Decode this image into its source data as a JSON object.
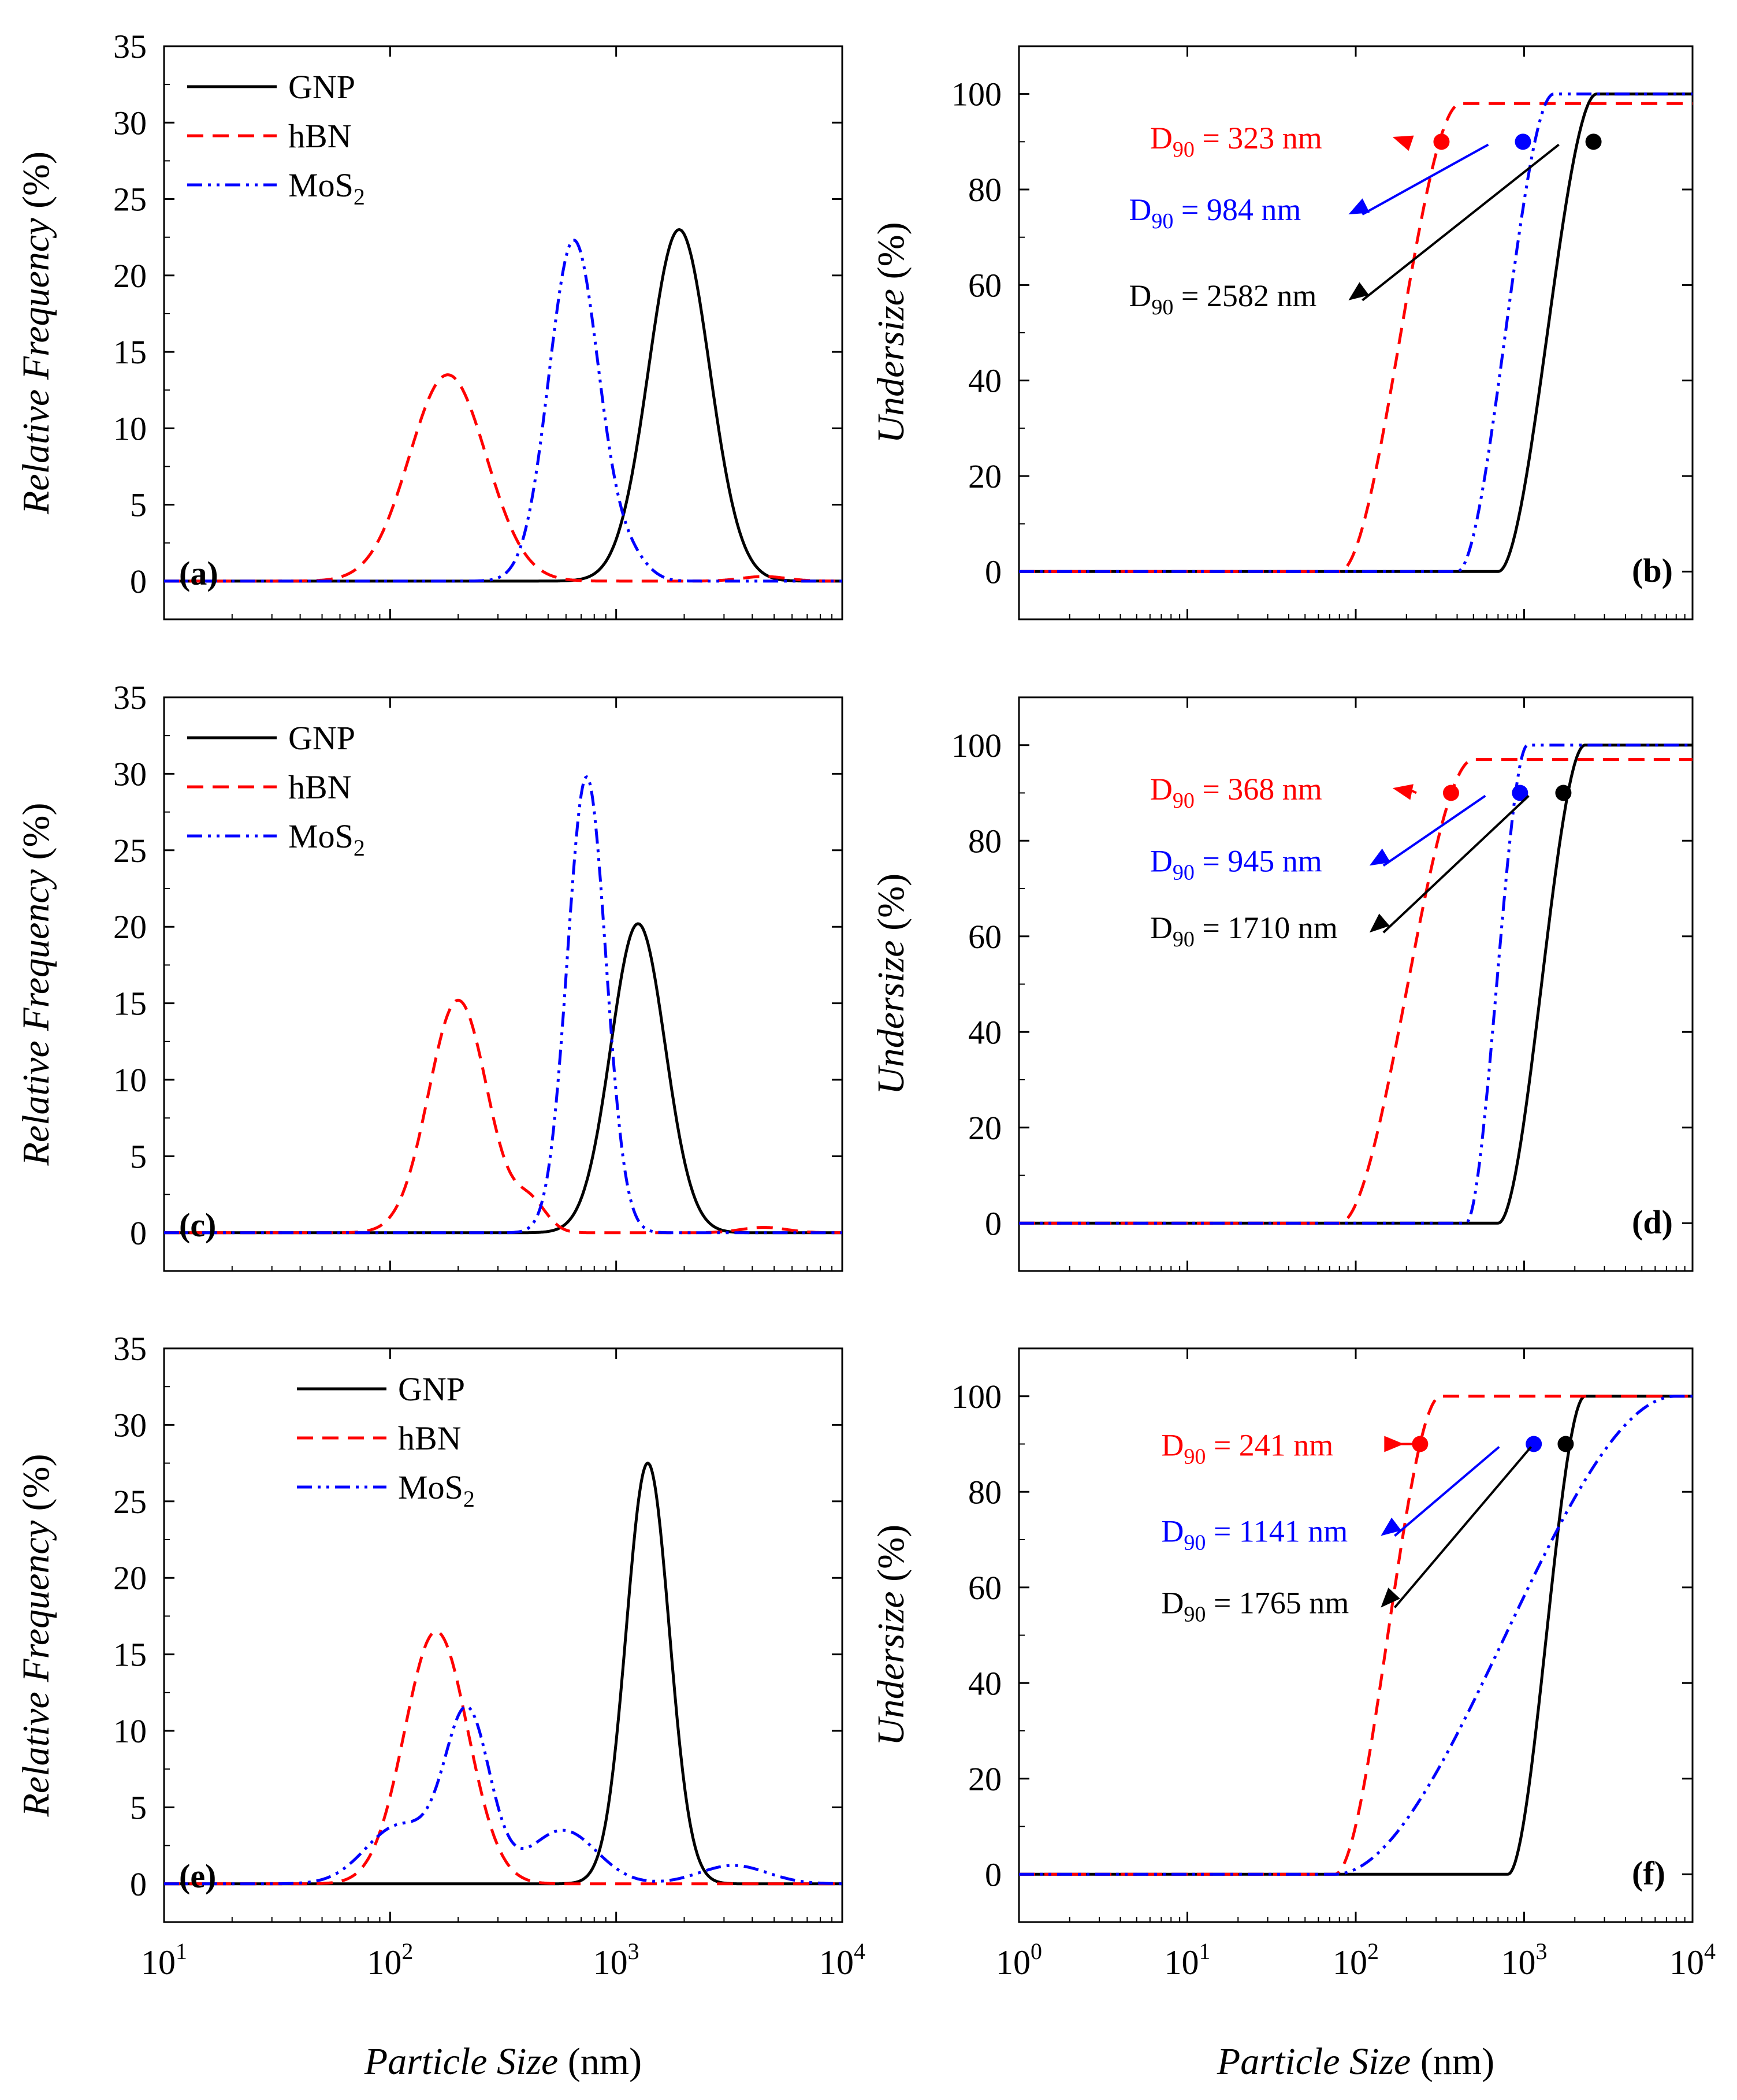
{
  "figure": {
    "x_label_prefix": "Particle Size",
    "x_label_unit": "(nm)"
  },
  "chart_data": [
    {
      "id": "a",
      "type": "line",
      "panel_label": "(a)",
      "ylabel_italic": "Relative Frequency",
      "ylabel_unit": "(%)",
      "xscale": "log",
      "xlim": [
        10,
        10000
      ],
      "ylim": [
        -2.5,
        35
      ],
      "yticks": [
        0,
        5,
        10,
        15,
        20,
        25,
        30,
        35
      ],
      "xticks": [
        {
          "base": "10",
          "exp": "1"
        },
        {
          "base": "10",
          "exp": "2"
        },
        {
          "base": "10",
          "exp": "3"
        },
        {
          "base": "10",
          "exp": "4"
        }
      ],
      "show_xtick_labels": false,
      "legend": {
        "position": "top-left",
        "entries": [
          {
            "label": "GNP",
            "sub": "",
            "series": "GNP"
          },
          {
            "label": "hBN",
            "sub": "",
            "series": "hBN"
          },
          {
            "label": "MoS",
            "sub": "2",
            "series": "MoS2"
          }
        ]
      },
      "series": [
        {
          "name": "GNP",
          "color": "#000000",
          "dash": "solid",
          "shape": "lognormal",
          "components": [
            {
              "amp": 23,
              "mu": 1900,
              "w": 0.135
            }
          ],
          "start": 10,
          "end": 10000
        },
        {
          "name": "hBN",
          "color": "#ff0000",
          "dash": "dash",
          "shape": "lognormal",
          "components": [
            {
              "amp": 13.5,
              "mu": 180,
              "w": 0.17
            },
            {
              "amp": 0.3,
              "mu": 4500,
              "w": 0.1
            }
          ],
          "start": 10,
          "end": 10000
        },
        {
          "name": "MoS2",
          "color": "#0000ff",
          "dash": "dashdotdot",
          "shape": "lognormal",
          "components": [
            {
              "amp": 22.3,
              "mu": 650,
              "w": 0.11
            },
            {
              "amp": 1.3,
              "mu": 1150,
              "w": 0.08
            }
          ],
          "start": 10,
          "end": 10000
        }
      ]
    },
    {
      "id": "b",
      "type": "line",
      "panel_label": "(b)",
      "ylabel_italic": "Undersize",
      "ylabel_unit": "(%)",
      "xscale": "log",
      "xlim": [
        1,
        10000
      ],
      "ylim": [
        -10,
        110
      ],
      "yticks": [
        0,
        20,
        40,
        60,
        80,
        100
      ],
      "xticks": [
        {
          "base": "10",
          "exp": "0"
        },
        {
          "base": "10",
          "exp": "1"
        },
        {
          "base": "10",
          "exp": "2"
        },
        {
          "base": "10",
          "exp": "3"
        },
        {
          "base": "10",
          "exp": "4"
        }
      ],
      "show_xtick_labels": false,
      "series": [
        {
          "name": "GNP",
          "color": "#000000",
          "dash": "solid",
          "shape": "sigmoid",
          "start": 700,
          "end": 2700,
          "plateau": 100
        },
        {
          "name": "hBN",
          "color": "#ff0000",
          "dash": "dash",
          "shape": "sigmoid",
          "start": 80,
          "end": 420,
          "plateau": 98
        },
        {
          "name": "MoS2",
          "color": "#0000ff",
          "dash": "dashdotdot",
          "shape": "sigmoid",
          "start": 400,
          "end": 1500,
          "plateau": 100
        }
      ],
      "annotations": [
        {
          "sym": "D",
          "sub": "90",
          "text": " = 323 nm",
          "color": "#ff0000",
          "d90_nm": 323,
          "marker_y": 90,
          "label_pos": [
            6,
            91
          ]
        },
        {
          "sym": "D",
          "sub": "90",
          "text": " = 984 nm",
          "color": "#0000ff",
          "d90_nm": 984,
          "marker_y": 90,
          "label_pos": [
            4.5,
            76
          ]
        },
        {
          "sym": "D",
          "sub": "90",
          "text": " = 2582 nm",
          "color": "#000000",
          "d90_nm": 2582,
          "marker_y": 90,
          "label_pos": [
            4.5,
            58
          ]
        }
      ]
    },
    {
      "id": "c",
      "type": "line",
      "panel_label": "(c)",
      "ylabel_italic": "Relative Frequency",
      "ylabel_unit": "(%)",
      "xscale": "log",
      "xlim": [
        10,
        10000
      ],
      "ylim": [
        -2.5,
        35
      ],
      "yticks": [
        0,
        5,
        10,
        15,
        20,
        25,
        30,
        35
      ],
      "xticks": [
        {
          "base": "10",
          "exp": "1"
        },
        {
          "base": "10",
          "exp": "2"
        },
        {
          "base": "10",
          "exp": "3"
        },
        {
          "base": "10",
          "exp": "4"
        }
      ],
      "show_xtick_labels": false,
      "legend": {
        "position": "top-left",
        "entries": [
          {
            "label": "GNP",
            "sub": "",
            "series": "GNP"
          },
          {
            "label": "hBN",
            "sub": "",
            "series": "hBN"
          },
          {
            "label": "MoS",
            "sub": "2",
            "series": "MoS2"
          }
        ]
      },
      "series": [
        {
          "name": "GNP",
          "color": "#000000",
          "dash": "solid",
          "shape": "lognormal",
          "components": [
            {
              "amp": 20.2,
              "mu": 1250,
              "w": 0.12
            }
          ],
          "start": 10,
          "end": 10000
        },
        {
          "name": "hBN",
          "color": "#ff0000",
          "dash": "dash",
          "shape": "lognormal",
          "components": [
            {
              "amp": 15.2,
              "mu": 200,
              "w": 0.13
            },
            {
              "amp": 1.8,
              "mu": 420,
              "w": 0.07
            },
            {
              "amp": 0.35,
              "mu": 4500,
              "w": 0.1
            }
          ],
          "start": 10,
          "end": 10000
        },
        {
          "name": "MoS2",
          "color": "#0000ff",
          "dash": "dashdotdot",
          "shape": "lognormal",
          "components": [
            {
              "amp": 29.8,
              "mu": 740,
              "w": 0.085
            }
          ],
          "start": 10,
          "end": 10000
        }
      ]
    },
    {
      "id": "d",
      "type": "line",
      "panel_label": "(d)",
      "ylabel_italic": "Undersize",
      "ylabel_unit": "(%)",
      "xscale": "log",
      "xlim": [
        1,
        10000
      ],
      "ylim": [
        -10,
        110
      ],
      "yticks": [
        0,
        20,
        40,
        60,
        80,
        100
      ],
      "xticks": [
        {
          "base": "10",
          "exp": "0"
        },
        {
          "base": "10",
          "exp": "1"
        },
        {
          "base": "10",
          "exp": "2"
        },
        {
          "base": "10",
          "exp": "3"
        },
        {
          "base": "10",
          "exp": "4"
        }
      ],
      "show_xtick_labels": false,
      "series": [
        {
          "name": "GNP",
          "color": "#000000",
          "dash": "solid",
          "shape": "sigmoid",
          "start": 700,
          "end": 2300,
          "plateau": 100
        },
        {
          "name": "hBN",
          "color": "#ff0000",
          "dash": "dash",
          "shape": "sigmoid",
          "start": 80,
          "end": 500,
          "plateau": 97
        },
        {
          "name": "MoS2",
          "color": "#0000ff",
          "dash": "dashdotdot",
          "shape": "sigmoid",
          "start": 450,
          "end": 1050,
          "plateau": 100
        }
      ],
      "annotations": [
        {
          "sym": "D",
          "sub": "90",
          "text": " = 368 nm",
          "color": "#ff0000",
          "d90_nm": 368,
          "marker_y": 90,
          "label_pos": [
            6,
            91
          ]
        },
        {
          "sym": "D",
          "sub": "90",
          "text": " = 945 nm",
          "color": "#0000ff",
          "d90_nm": 945,
          "marker_y": 90,
          "label_pos": [
            6,
            76
          ]
        },
        {
          "sym": "D",
          "sub": "90",
          "text": " = 1710 nm",
          "color": "#000000",
          "d90_nm": 1710,
          "marker_y": 90,
          "label_pos": [
            6,
            62
          ]
        }
      ]
    },
    {
      "id": "e",
      "type": "line",
      "panel_label": "(e)",
      "ylabel_italic": "Relative Frequency",
      "ylabel_unit": "(%)",
      "xscale": "log",
      "xlim": [
        10,
        10000
      ],
      "ylim": [
        -2.5,
        35
      ],
      "yticks": [
        0,
        5,
        10,
        15,
        20,
        25,
        30,
        35
      ],
      "xticks": [
        {
          "base": "10",
          "exp": "1"
        },
        {
          "base": "10",
          "exp": "2"
        },
        {
          "base": "10",
          "exp": "3"
        },
        {
          "base": "10",
          "exp": "4"
        }
      ],
      "show_xtick_labels": true,
      "legend": {
        "position": "top-center",
        "entries": [
          {
            "label": "GNP",
            "sub": "",
            "series": "GNP"
          },
          {
            "label": "hBN",
            "sub": "",
            "series": "hBN"
          },
          {
            "label": "MoS",
            "sub": "2",
            "series": "MoS2"
          }
        ]
      },
      "series": [
        {
          "name": "GNP",
          "color": "#000000",
          "dash": "solid",
          "shape": "lognormal",
          "components": [
            {
              "amp": 27.5,
              "mu": 1380,
              "w": 0.095
            }
          ],
          "start": 10,
          "end": 10000
        },
        {
          "name": "hBN",
          "color": "#ff0000",
          "dash": "dash",
          "shape": "lognormal",
          "components": [
            {
              "amp": 16.5,
              "mu": 160,
              "w": 0.14
            }
          ],
          "start": 10,
          "end": 10000
        },
        {
          "name": "MoS2",
          "color": "#0000ff",
          "dash": "dashdotdot",
          "shape": "lognormal",
          "components": [
            {
              "amp": 11.0,
              "mu": 220,
              "w": 0.1
            },
            {
              "amp": 3.8,
              "mu": 110,
              "w": 0.15
            },
            {
              "amp": 3.5,
              "mu": 580,
              "w": 0.15
            },
            {
              "amp": 1.2,
              "mu": 3300,
              "w": 0.15
            }
          ],
          "start": 10,
          "end": 10000
        }
      ]
    },
    {
      "id": "f",
      "type": "line",
      "panel_label": "(f)",
      "ylabel_italic": "Undersize",
      "ylabel_unit": "(%)",
      "xscale": "log",
      "xlim": [
        1,
        10000
      ],
      "ylim": [
        -10,
        110
      ],
      "yticks": [
        0,
        20,
        40,
        60,
        80,
        100
      ],
      "xticks": [
        {
          "base": "10",
          "exp": "0"
        },
        {
          "base": "10",
          "exp": "1"
        },
        {
          "base": "10",
          "exp": "2"
        },
        {
          "base": "10",
          "exp": "3"
        },
        {
          "base": "10",
          "exp": "4"
        }
      ],
      "show_xtick_labels": true,
      "series": [
        {
          "name": "GNP",
          "color": "#000000",
          "dash": "solid",
          "shape": "sigmoid",
          "start": 800,
          "end": 2300,
          "plateau": 100
        },
        {
          "name": "hBN",
          "color": "#ff0000",
          "dash": "dash",
          "shape": "sigmoid",
          "start": 75,
          "end": 320,
          "plateau": 100
        },
        {
          "name": "MoS2",
          "color": "#0000ff",
          "dash": "dashdotdot",
          "shape": "sigmoid",
          "start": 75,
          "end": 8000,
          "plateau": 100
        }
      ],
      "annotations": [
        {
          "sym": "D",
          "sub": "90",
          "text": " = 241 nm",
          "color": "#ff0000",
          "d90_nm": 241,
          "marker_y": 90,
          "label_pos": [
            7,
            90
          ]
        },
        {
          "sym": "D",
          "sub": "90",
          "text": " = 1141 nm",
          "color": "#0000ff",
          "d90_nm": 1141,
          "marker_y": 90,
          "label_pos": [
            7,
            72
          ]
        },
        {
          "sym": "D",
          "sub": "90",
          "text": " = 1765 nm",
          "color": "#000000",
          "d90_nm": 1765,
          "marker_y": 90,
          "label_pos": [
            7,
            57
          ]
        }
      ]
    }
  ]
}
